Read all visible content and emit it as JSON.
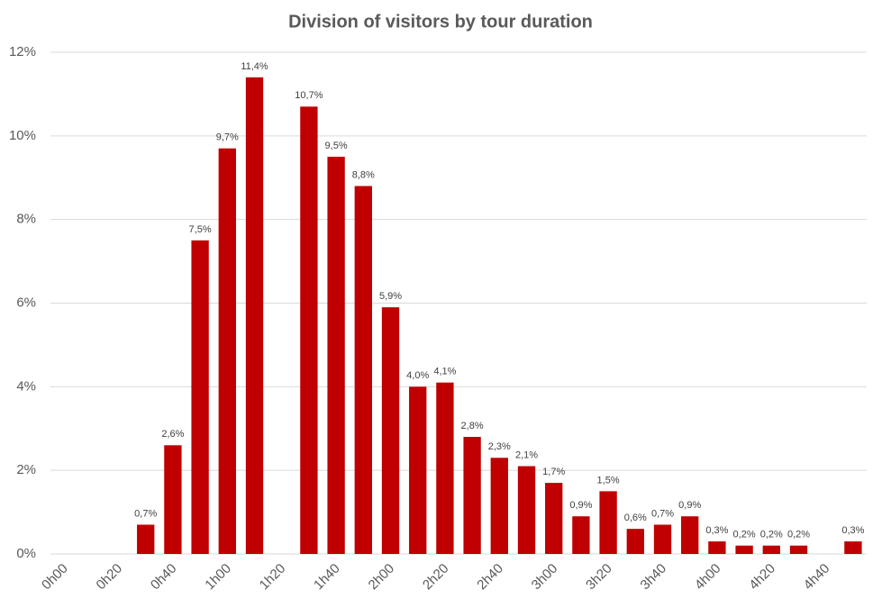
{
  "chart_data": {
    "type": "bar",
    "title": "Division of visitors by tour duration",
    "categories": [
      "0h00",
      null,
      "0h20",
      null,
      "0h40",
      null,
      "1h00",
      null,
      "1h20",
      null,
      "1h40",
      null,
      "2h00",
      null,
      "2h20",
      null,
      "2h40",
      null,
      "3h00",
      null,
      "3h20",
      null,
      "3h40",
      null,
      "4h00",
      null,
      "4h20",
      null,
      "4h40",
      null
    ],
    "values": [
      null,
      null,
      null,
      0.7,
      2.6,
      7.5,
      9.7,
      11.4,
      null,
      10.7,
      9.5,
      8.8,
      5.9,
      4.0,
      4.1,
      2.8,
      2.3,
      2.1,
      1.7,
      0.9,
      1.5,
      0.6,
      0.7,
      0.9,
      0.3,
      0.2,
      0.2,
      0.2,
      null,
      0.3
    ],
    "value_labels": [
      null,
      null,
      null,
      "0,7%",
      "2,6%",
      "7,5%",
      "9,7%",
      "11,4%",
      null,
      "10,7%",
      "9,5%",
      "8,8%",
      "5,9%",
      "4,0%",
      "4,1%",
      "2,8%",
      "2,3%",
      "2,1%",
      "1,7%",
      "0,9%",
      "1,5%",
      "0,6%",
      "0,7%",
      "0,9%",
      "0,3%",
      "0,2%",
      "0,2%",
      "0,2%",
      null,
      "0,3%"
    ],
    "color": "#c00000",
    "ylim": [
      0,
      12
    ],
    "yticks": [
      {
        "value": 0,
        "label": "0%"
      },
      {
        "value": 2,
        "label": "2%"
      },
      {
        "value": 4,
        "label": "4%"
      },
      {
        "value": 6,
        "label": "6%"
      },
      {
        "value": 8,
        "label": "8%"
      },
      {
        "value": 10,
        "label": "10%"
      },
      {
        "value": 12,
        "label": "12%"
      }
    ],
    "grid": true
  }
}
